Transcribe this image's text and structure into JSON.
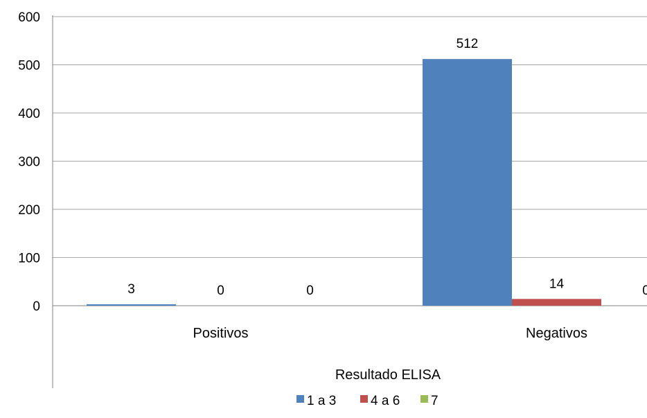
{
  "chart_data": {
    "type": "bar",
    "categories": [
      "Positivos",
      "Negativos"
    ],
    "series": [
      {
        "name": "1 a 3",
        "values": [
          3,
          512
        ],
        "color": "#4f81bd"
      },
      {
        "name": "4 a 6",
        "values": [
          0,
          14
        ],
        "color": "#c0504d"
      },
      {
        "name": "7",
        "values": [
          0,
          0
        ],
        "color": "#9bbb59"
      }
    ],
    "data_labels": [
      [
        "3",
        "0",
        "0"
      ],
      [
        "512",
        "14",
        "0"
      ]
    ],
    "title": "",
    "xlabel": "Resultado ELISA",
    "ylabel": "",
    "ylim": [
      0,
      600
    ],
    "yticks": [
      "0",
      "100",
      "200",
      "300",
      "400",
      "500",
      "600"
    ],
    "grid": true,
    "legend_position": "bottom"
  }
}
